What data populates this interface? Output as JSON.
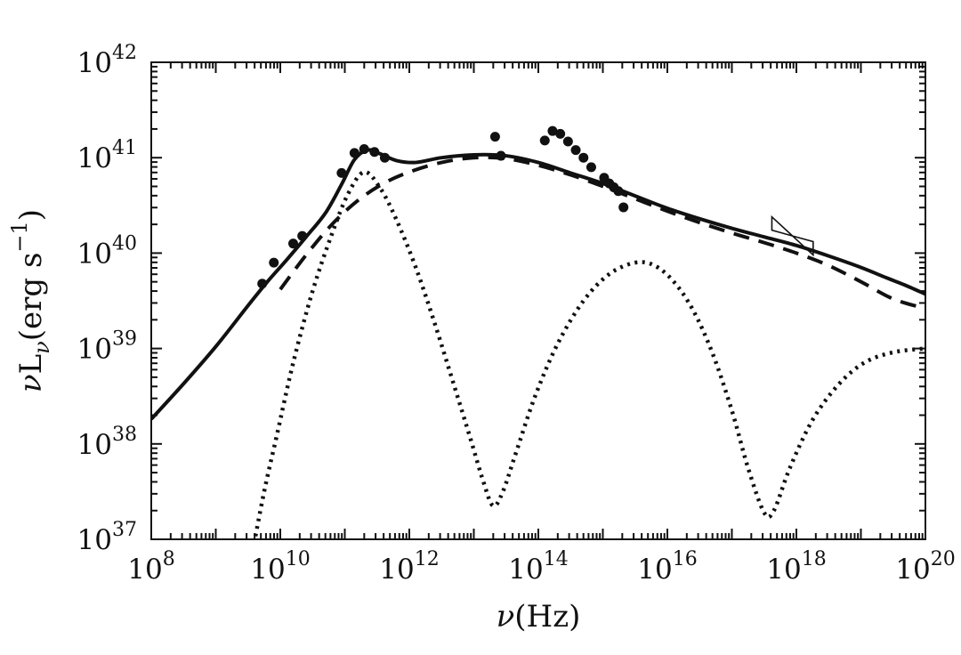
{
  "figure": {
    "background": "#ffffff",
    "ink_color": "#111111"
  },
  "chart_data": {
    "type": "line",
    "title": "",
    "x_scale": "log",
    "y_scale": "log",
    "xlim": [
      100000000.0,
      1e+20
    ],
    "ylim": [
      1e+37,
      1e+42
    ],
    "x_log10_range": [
      8,
      20
    ],
    "y_log10_range": [
      37,
      42
    ],
    "grid": false,
    "legend": "none",
    "xlabel_parts": [
      {
        "t": "ν",
        "style": "italic"
      },
      {
        "t": "(Hz)",
        "style": "normal"
      }
    ],
    "ylabel_parts": [
      {
        "t": "ν",
        "style": "italic"
      },
      {
        "t": "L",
        "style": "normal"
      },
      {
        "t": "ν",
        "style": "sub"
      },
      {
        "t": "(erg s",
        "style": "normal"
      },
      {
        "t": "−1",
        "style": "sup"
      },
      {
        "t": ")",
        "style": "normal"
      }
    ],
    "x_tick_label_exponents": [
      8,
      10,
      12,
      14,
      16,
      18,
      20
    ],
    "y_tick_label_exponents": [
      37,
      38,
      39,
      40,
      41,
      42
    ],
    "series": [
      {
        "name": "total-model",
        "style": "solid",
        "width": 4,
        "log10_points": [
          [
            8.0,
            38.26
          ],
          [
            8.5,
            38.63
          ],
          [
            9.0,
            39.02
          ],
          [
            9.5,
            39.45
          ],
          [
            9.8,
            39.7
          ],
          [
            10.1,
            39.93
          ],
          [
            10.4,
            40.17
          ],
          [
            10.7,
            40.42
          ],
          [
            10.95,
            40.72
          ],
          [
            11.15,
            40.98
          ],
          [
            11.35,
            41.08
          ],
          [
            11.55,
            41.04
          ],
          [
            11.8,
            40.97
          ],
          [
            12.1,
            40.95
          ],
          [
            12.5,
            41.0
          ],
          [
            13.0,
            41.03
          ],
          [
            13.5,
            41.02
          ],
          [
            14.0,
            40.95
          ],
          [
            14.5,
            40.84
          ],
          [
            15.0,
            40.73
          ],
          [
            15.5,
            40.6
          ],
          [
            16.0,
            40.47
          ],
          [
            16.5,
            40.36
          ],
          [
            17.0,
            40.26
          ],
          [
            17.5,
            40.17
          ],
          [
            18.0,
            40.08
          ],
          [
            18.5,
            39.97
          ],
          [
            19.0,
            39.85
          ],
          [
            19.4,
            39.74
          ],
          [
            19.7,
            39.66
          ],
          [
            20.0,
            39.57
          ]
        ]
      },
      {
        "name": "dashed-component",
        "style": "dashed",
        "width": 4,
        "log10_points": [
          [
            10.0,
            39.62
          ],
          [
            10.4,
            39.98
          ],
          [
            10.8,
            40.3
          ],
          [
            11.2,
            40.55
          ],
          [
            11.6,
            40.73
          ],
          [
            12.0,
            40.85
          ],
          [
            12.5,
            40.95
          ],
          [
            13.0,
            41.0
          ],
          [
            13.5,
            40.99
          ],
          [
            14.0,
            40.92
          ],
          [
            14.5,
            40.82
          ],
          [
            15.0,
            40.7
          ],
          [
            15.5,
            40.57
          ],
          [
            16.0,
            40.44
          ],
          [
            16.5,
            40.32
          ],
          [
            17.0,
            40.21
          ],
          [
            17.5,
            40.11
          ],
          [
            18.0,
            40.0
          ],
          [
            18.5,
            39.87
          ],
          [
            19.0,
            39.7
          ],
          [
            19.5,
            39.52
          ],
          [
            20.0,
            39.42
          ]
        ]
      },
      {
        "name": "dotted-component",
        "style": "dotted",
        "width": 4.5,
        "log10_points": [
          [
            9.55,
            36.8
          ],
          [
            9.75,
            37.5
          ],
          [
            9.95,
            38.1
          ],
          [
            10.2,
            38.85
          ],
          [
            10.5,
            39.6
          ],
          [
            10.8,
            40.2
          ],
          [
            11.05,
            40.62
          ],
          [
            11.3,
            40.85
          ],
          [
            11.55,
            40.68
          ],
          [
            11.8,
            40.35
          ],
          [
            12.1,
            39.85
          ],
          [
            12.4,
            39.25
          ],
          [
            12.7,
            38.6
          ],
          [
            12.95,
            38.05
          ],
          [
            13.15,
            37.6
          ],
          [
            13.3,
            37.35
          ],
          [
            13.45,
            37.5
          ],
          [
            13.65,
            37.9
          ],
          [
            13.95,
            38.5
          ],
          [
            14.3,
            39.05
          ],
          [
            14.7,
            39.5
          ],
          [
            15.1,
            39.78
          ],
          [
            15.5,
            39.9
          ],
          [
            15.8,
            39.87
          ],
          [
            16.1,
            39.7
          ],
          [
            16.4,
            39.4
          ],
          [
            16.7,
            38.95
          ],
          [
            17.0,
            38.35
          ],
          [
            17.25,
            37.75
          ],
          [
            17.5,
            37.28
          ],
          [
            17.65,
            37.3
          ],
          [
            17.9,
            37.75
          ],
          [
            18.25,
            38.25
          ],
          [
            18.65,
            38.62
          ],
          [
            19.05,
            38.85
          ],
          [
            19.5,
            38.96
          ],
          [
            20.0,
            39.0
          ]
        ]
      }
    ],
    "scatter": {
      "name": "observed-data",
      "marker": "filled-circle",
      "radius": 5.5,
      "log10_points": [
        [
          9.72,
          39.68
        ],
        [
          9.9,
          39.9
        ],
        [
          10.2,
          40.1
        ],
        [
          10.34,
          40.18
        ],
        [
          10.95,
          40.84
        ],
        [
          11.15,
          41.05
        ],
        [
          11.3,
          41.09
        ],
        [
          11.46,
          41.06
        ],
        [
          11.62,
          41.0
        ],
        [
          13.33,
          41.22
        ],
        [
          13.42,
          41.02
        ],
        [
          14.1,
          41.18
        ],
        [
          14.22,
          41.28
        ],
        [
          14.34,
          41.25
        ],
        [
          14.46,
          41.17
        ],
        [
          14.58,
          41.08
        ],
        [
          14.7,
          41.0
        ],
        [
          14.82,
          40.9
        ],
        [
          15.02,
          40.79
        ],
        [
          15.1,
          40.73
        ],
        [
          15.17,
          40.69
        ],
        [
          15.24,
          40.65
        ],
        [
          15.32,
          40.48
        ]
      ]
    },
    "annotations": [
      {
        "type": "bowtie",
        "name": "xray-bowtie",
        "x_log10": [
          17.62,
          18.26
        ],
        "y_left_log10": [
          40.38,
          40.24
        ],
        "y_right_log10": [
          40.12,
          39.98
        ]
      }
    ]
  }
}
